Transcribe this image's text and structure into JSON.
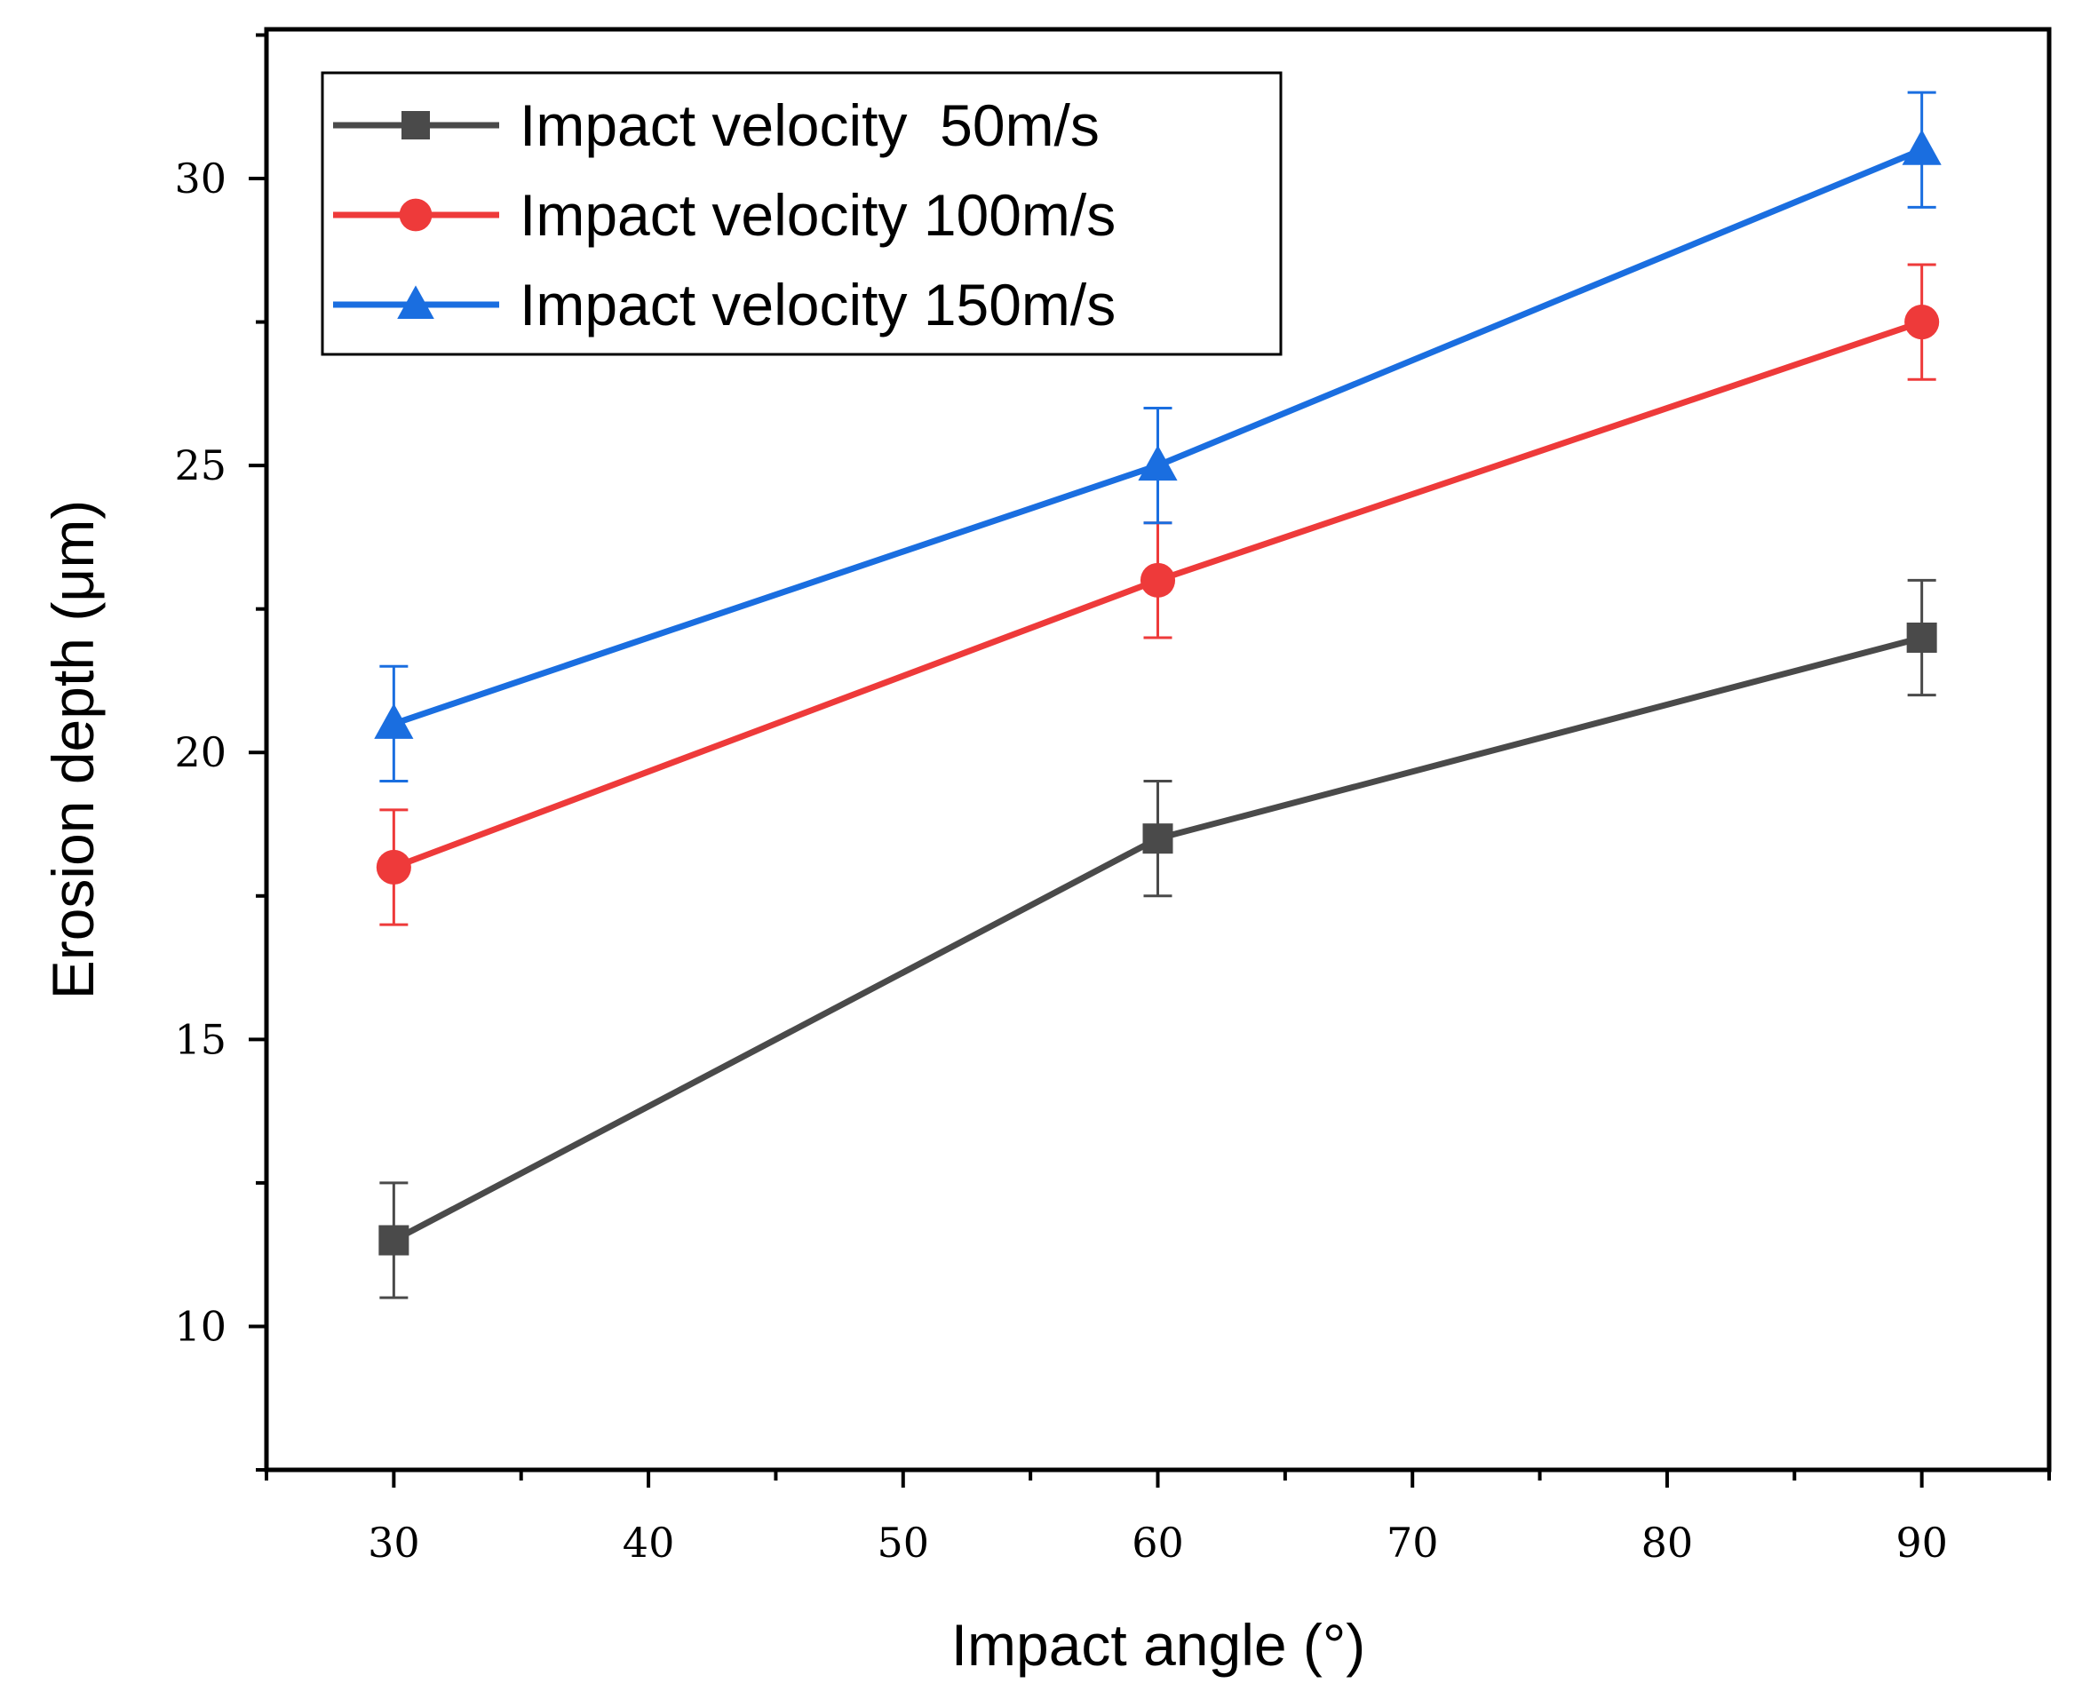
{
  "chart_data": {
    "type": "line",
    "title": "",
    "xlabel": "Impact angle (°)",
    "ylabel": "Erosion depth (μm)",
    "xlim": [
      25,
      95
    ],
    "ylim": [
      7.5,
      32.6
    ],
    "xticks": [
      30,
      40,
      50,
      60,
      70,
      80,
      90
    ],
    "yticks": [
      10,
      15,
      20,
      25,
      30
    ],
    "grid": false,
    "legend_position": "top-left",
    "x": [
      30,
      60,
      90
    ],
    "series": [
      {
        "name": "Impact velocity  50m/s",
        "marker": "square",
        "color": "#4a4a4a",
        "values": [
          11.5,
          18.5,
          22
        ],
        "error": [
          1,
          1,
          1
        ]
      },
      {
        "name": "Impact velocity 100m/s",
        "marker": "circle",
        "color": "#ee3a3a",
        "values": [
          18,
          23,
          27.5
        ],
        "error": [
          1,
          1,
          1
        ]
      },
      {
        "name": "Impact velocity 150m/s",
        "marker": "triangle",
        "color": "#1a6ee0",
        "values": [
          20.5,
          25,
          30.5
        ],
        "error": [
          1,
          1,
          1
        ]
      }
    ]
  }
}
